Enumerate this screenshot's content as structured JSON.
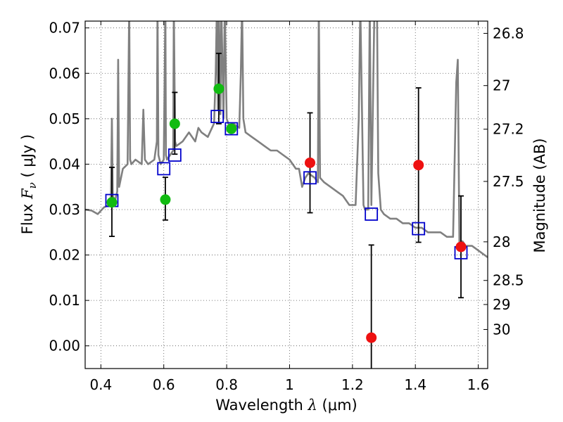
{
  "chart_data": {
    "type": "scatter",
    "xlabel": {
      "prefix": "Wavelength",
      "symbol": "λ",
      "open": "(",
      "unit": "μm",
      "close": ")"
    },
    "ylabel": {
      "prefix": "Flux",
      "symbol": "F",
      "subscript": "ν",
      "open": "(",
      "unit": "μJy",
      "close": ")"
    },
    "ylabel_right": "Magnitude (AB)",
    "xlim": [
      0.35,
      1.63
    ],
    "ylim": [
      -0.005,
      0.0715
    ],
    "grid": true,
    "x_ticks": [
      0.4,
      0.6,
      0.8,
      1.0,
      1.2,
      1.4,
      1.6
    ],
    "x_tick_labels": [
      "0.4",
      "0.6",
      "0.8",
      "1",
      "1.2",
      "1.4",
      "1.6"
    ],
    "y_ticks": [
      0.0,
      0.01,
      0.02,
      0.03,
      0.04,
      0.05,
      0.06,
      0.07
    ],
    "y_tick_labels": [
      "0.00",
      "0.01",
      "0.02",
      "0.03",
      "0.04",
      "0.05",
      "0.06",
      "0.07"
    ],
    "right_ticks": [
      {
        "label": "26.8",
        "flux": 0.0688
      },
      {
        "label": "27",
        "flux": 0.0573
      },
      {
        "label": "27.2",
        "flux": 0.0477
      },
      {
        "label": "27.5",
        "flux": 0.0362
      },
      {
        "label": "28",
        "flux": 0.0229
      },
      {
        "label": "28.5",
        "flux": 0.0144
      },
      {
        "label": "29",
        "flux": 0.0091
      },
      {
        "label": "30",
        "flux": 0.0036
      }
    ],
    "colors": {
      "model": "#808080",
      "green": "#11bb11",
      "red": "#ee1111",
      "blue": "#0000cc",
      "errorbar": "#000000",
      "grid": "#555555"
    },
    "series": [
      {
        "type": "line",
        "x": [
          0.35,
          0.37,
          0.39,
          0.41,
          0.425,
          0.432,
          0.435,
          0.438,
          0.445,
          0.452,
          0.455,
          0.458,
          0.47,
          0.485,
          0.49,
          0.493,
          0.497,
          0.51,
          0.53,
          0.535,
          0.54,
          0.55,
          0.57,
          0.578,
          0.58,
          0.583,
          0.59,
          0.6,
          0.605,
          0.607,
          0.61,
          0.62,
          0.63,
          0.632,
          0.636,
          0.64,
          0.66,
          0.68,
          0.7,
          0.71,
          0.72,
          0.74,
          0.76,
          0.765,
          0.769,
          0.772,
          0.775,
          0.78,
          0.783,
          0.79,
          0.794,
          0.8,
          0.81,
          0.82,
          0.84,
          0.845,
          0.849,
          0.853,
          0.86,
          0.88,
          0.9,
          0.92,
          0.94,
          0.96,
          0.98,
          1.0,
          1.01,
          1.02,
          1.03,
          1.04,
          1.05,
          1.06,
          1.08,
          1.09,
          1.093,
          1.097,
          1.11,
          1.13,
          1.15,
          1.17,
          1.19,
          1.21,
          1.22,
          1.225,
          1.235,
          1.24,
          1.25,
          1.255,
          1.26,
          1.27,
          1.278,
          1.282,
          1.29,
          1.3,
          1.32,
          1.34,
          1.36,
          1.38,
          1.4,
          1.42,
          1.44,
          1.46,
          1.48,
          1.5,
          1.52,
          1.53,
          1.535,
          1.54,
          1.55,
          1.56,
          1.58,
          1.6,
          1.63
        ],
        "y": [
          0.03,
          0.0298,
          0.029,
          0.0305,
          0.031,
          0.032,
          0.05,
          0.033,
          0.032,
          0.034,
          0.063,
          0.035,
          0.039,
          0.04,
          0.075,
          0.041,
          0.04,
          0.041,
          0.04,
          0.052,
          0.041,
          0.04,
          0.041,
          0.045,
          0.075,
          0.042,
          0.04,
          0.041,
          0.075,
          0.042,
          0.041,
          0.042,
          0.043,
          0.075,
          0.045,
          0.044,
          0.045,
          0.047,
          0.045,
          0.048,
          0.047,
          0.046,
          0.049,
          0.06,
          0.075,
          0.052,
          0.075,
          0.051,
          0.075,
          0.05,
          0.075,
          0.05,
          0.048,
          0.049,
          0.048,
          0.06,
          0.075,
          0.05,
          0.047,
          0.046,
          0.045,
          0.044,
          0.043,
          0.043,
          0.042,
          0.041,
          0.04,
          0.039,
          0.039,
          0.035,
          0.037,
          0.038,
          0.037,
          0.036,
          0.075,
          0.037,
          0.036,
          0.035,
          0.034,
          0.033,
          0.031,
          0.031,
          0.05,
          0.075,
          0.031,
          0.03,
          0.03,
          0.075,
          0.031,
          0.075,
          0.075,
          0.038,
          0.03,
          0.029,
          0.028,
          0.028,
          0.027,
          0.027,
          0.026,
          0.026,
          0.025,
          0.025,
          0.025,
          0.024,
          0.024,
          0.058,
          0.063,
          0.023,
          0.023,
          0.022,
          0.022,
          0.021,
          0.0195
        ]
      },
      {
        "type": "open-square",
        "color": "blue",
        "x": [
          0.435,
          0.6,
          0.635,
          0.77,
          0.815,
          1.065,
          1.26,
          1.41,
          1.545
        ],
        "y": [
          0.032,
          0.039,
          0.042,
          0.0505,
          0.0478,
          0.037,
          0.029,
          0.0258,
          0.0205
        ]
      },
      {
        "type": "point",
        "color": "green",
        "x": [
          0.435,
          0.605,
          0.635,
          0.775,
          0.815
        ],
        "y": [
          0.0316,
          0.0322,
          0.0489,
          0.0566,
          0.0478
        ]
      },
      {
        "type": "point",
        "color": "red",
        "x": [
          1.065,
          1.26,
          1.41,
          1.545
        ],
        "y": [
          0.0403,
          0.0018,
          0.0398,
          0.0218
        ]
      },
      {
        "type": "errorbar",
        "x": [
          0.435,
          0.605,
          0.635,
          0.775,
          1.065,
          1.26,
          1.41,
          1.545
        ],
        "y_low": [
          0.0241,
          0.0277,
          0.0422,
          0.0489,
          0.0293,
          -0.006,
          0.0228,
          0.0106
        ],
        "y_high": [
          0.0393,
          0.0371,
          0.0558,
          0.0644,
          0.0513,
          0.0222,
          0.0568,
          0.033
        ]
      }
    ]
  }
}
